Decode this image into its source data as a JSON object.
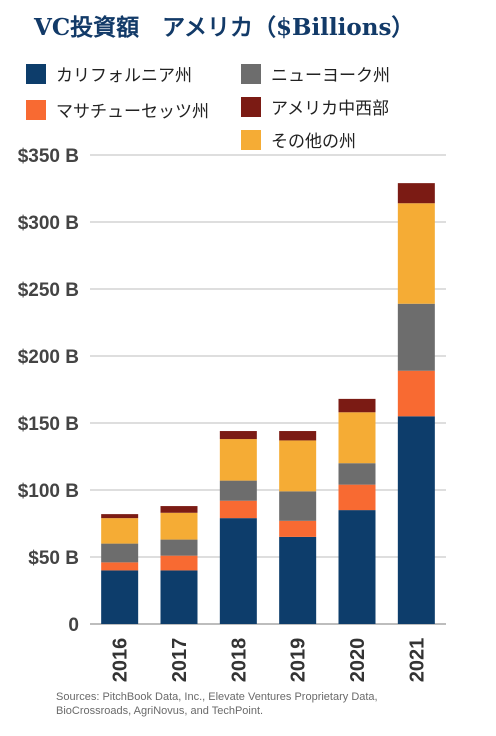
{
  "chart_data": {
    "type": "bar",
    "stacked": true,
    "title": "VC投資額　アメリカ（$Billions）",
    "categories": [
      "2016",
      "2017",
      "2018",
      "2019",
      "2020",
      "2021"
    ],
    "series": [
      {
        "name": "カリフォルニア州",
        "color": "#0d3d6b",
        "values": [
          40,
          40,
          79,
          65,
          85,
          155
        ]
      },
      {
        "name": "マサチューセッツ州",
        "color": "#f86a32",
        "values": [
          6,
          11,
          13,
          12,
          19,
          34
        ]
      },
      {
        "name": "ニューヨーク州",
        "color": "#6d6d6d",
        "values": [
          14,
          12,
          15,
          22,
          16,
          50
        ]
      },
      {
        "name": "その他の州",
        "color": "#f5ac35",
        "values": [
          19,
          20,
          31,
          38,
          38,
          75
        ]
      },
      {
        "name": "アメリカ中西部",
        "color": "#7b1b14",
        "values": [
          3,
          5,
          6,
          7,
          10,
          15
        ]
      }
    ],
    "ylim": [
      0,
      350
    ],
    "yticks": [
      {
        "value": 350,
        "label": "$350 B"
      },
      {
        "value": 300,
        "label": "$300 B"
      },
      {
        "value": 250,
        "label": "$250 B"
      },
      {
        "value": 200,
        "label": "$200 B"
      },
      {
        "value": 150,
        "label": "$150 B"
      },
      {
        "value": 100,
        "label": "$100 B"
      },
      {
        "value": 50,
        "label": "$50 B"
      },
      {
        "value": 0,
        "label": "0"
      }
    ],
    "grid": true,
    "legend": "top"
  },
  "sources_line1": "Sources: PitchBook Data, Inc., Elevate Ventures Proprietary Data,",
  "sources_line2": "BioCrossroads, AgriNovus, and TechPoint."
}
